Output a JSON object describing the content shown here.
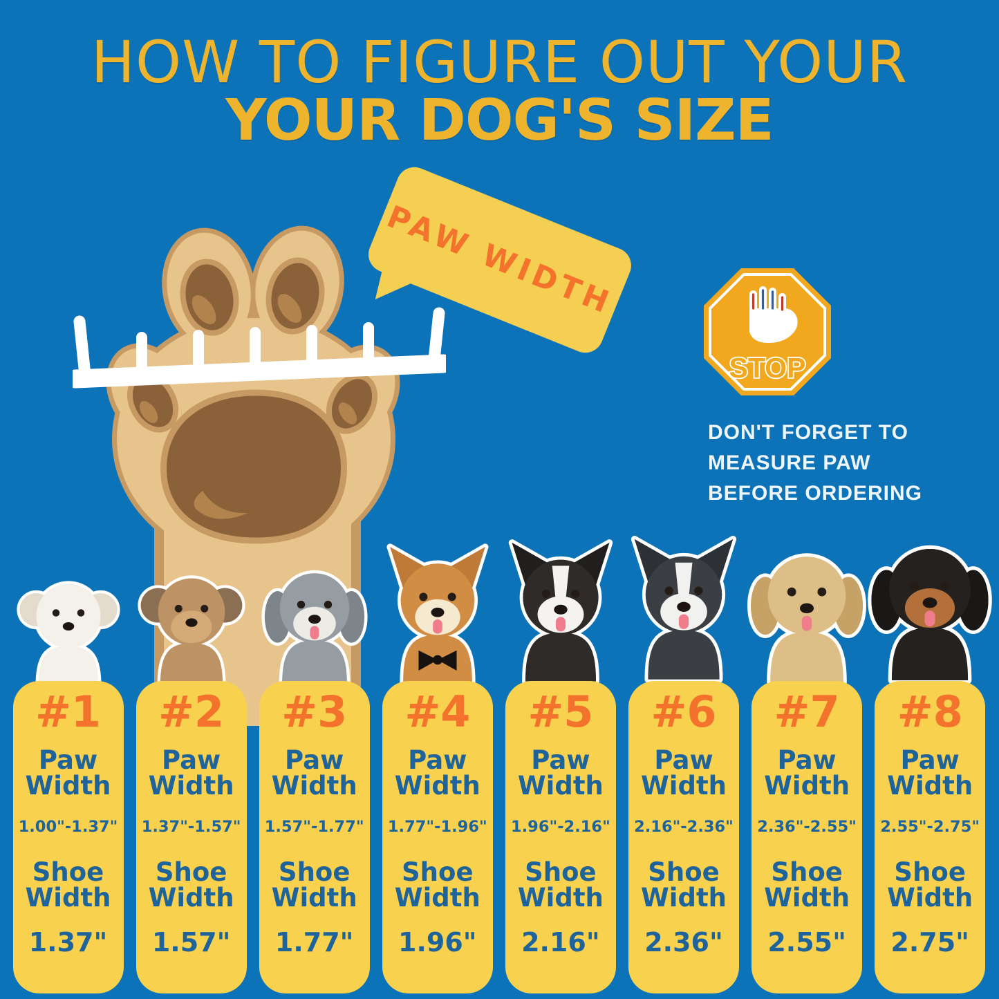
{
  "title": {
    "line1": "HOW TO FIGURE OUT YOUR",
    "line2": "YOUR DOG'S SIZE"
  },
  "bubble": {
    "text": "PAW WIDTH"
  },
  "stop_sign": {
    "label": "STOP",
    "icon": "stop-hand-icon"
  },
  "reminder": {
    "lines": [
      "DON'T FORGET TO",
      "MEASURE PAW",
      "BEFORE ORDERING"
    ]
  },
  "labels": {
    "paw": "Paw Width",
    "shoe": "Shoe Width"
  },
  "sizes": [
    {
      "number": "#1",
      "paw_width": "1.00\"-1.37\"",
      "shoe_width": "1.37\""
    },
    {
      "number": "#2",
      "paw_width": "1.37\"-1.57\"",
      "shoe_width": "1.57\""
    },
    {
      "number": "#3",
      "paw_width": "1.57\"-1.77\"",
      "shoe_width": "1.77\""
    },
    {
      "number": "#4",
      "paw_width": "1.77\"-1.96\"",
      "shoe_width": "1.96\""
    },
    {
      "number": "#5",
      "paw_width": "1.96\"-2.16\"",
      "shoe_width": "2.16\""
    },
    {
      "number": "#6",
      "paw_width": "2.16\"-2.36\"",
      "shoe_width": "2.36\""
    },
    {
      "number": "#7",
      "paw_width": "2.36\"-2.55\"",
      "shoe_width": "2.55\""
    },
    {
      "number": "#8",
      "paw_width": "2.55\"-2.75\"",
      "shoe_width": "2.75\""
    }
  ],
  "dogs": [
    {
      "breed": "bichon-frise",
      "fur": "#f4f1ea",
      "ear": "#e3dccd",
      "ears": "fluffy",
      "face": "",
      "blaze": false,
      "tongue": false,
      "bowtie": false
    },
    {
      "breed": "yorkshire-terrier",
      "fur": "#bd9265",
      "ear": "#8a6f52",
      "ears": "fluffy",
      "face": "#d4ab76",
      "blaze": false,
      "tongue": false,
      "bowtie": false
    },
    {
      "breed": "bearded-collie",
      "fur": "#969da2",
      "ear": "#7d858b",
      "ears": "floppy",
      "face": "#edebe5",
      "blaze": false,
      "tongue": true,
      "bowtie": false
    },
    {
      "breed": "shiba-inu",
      "fur": "#d28d45",
      "ear": "#c07a37",
      "ears": "pointy",
      "face": "#f5e9d0",
      "blaze": false,
      "tongue": true,
      "bowtie": true
    },
    {
      "breed": "border-collie",
      "fur": "#2e2b29",
      "ear": "#211f1e",
      "ears": "pointy",
      "face": "#f4f3ef",
      "blaze": true,
      "tongue": true,
      "bowtie": false
    },
    {
      "breed": "husky",
      "fur": "#3b3e43",
      "ear": "#2d3035",
      "ears": "pointy",
      "face": "#f1f1ef",
      "blaze": true,
      "tongue": true,
      "bowtie": false
    },
    {
      "breed": "golden-retriever",
      "fur": "#ddbe86",
      "ear": "#c6a267",
      "ears": "floppy",
      "face": "",
      "blaze": false,
      "tongue": true,
      "bowtie": false
    },
    {
      "breed": "rottweiler",
      "fur": "#24211f",
      "ear": "#1a1816",
      "ears": "floppy",
      "face": "#b4703a",
      "blaze": false,
      "tongue": true,
      "bowtie": false
    }
  ],
  "icons": [
    "paw-icon",
    "measuring-tape-icon",
    "stop-sign-icon",
    "stop-hand-icon"
  ],
  "colors": {
    "background": "#0d73b8",
    "card_yellow": "#f8d14f",
    "title_yellow": "#eeb42e",
    "orange": "#f3722c",
    "text_blue": "#1f639b",
    "bubble_yellow": "#f5cf52",
    "stop_orange": "#f1a81f",
    "paw_fill": "#e8c48d",
    "paw_outline": "#c69a62",
    "paw_pad": "#8a6139",
    "paw_highlight": "#b2834d",
    "tongue_pink": "#ef7d8c"
  }
}
